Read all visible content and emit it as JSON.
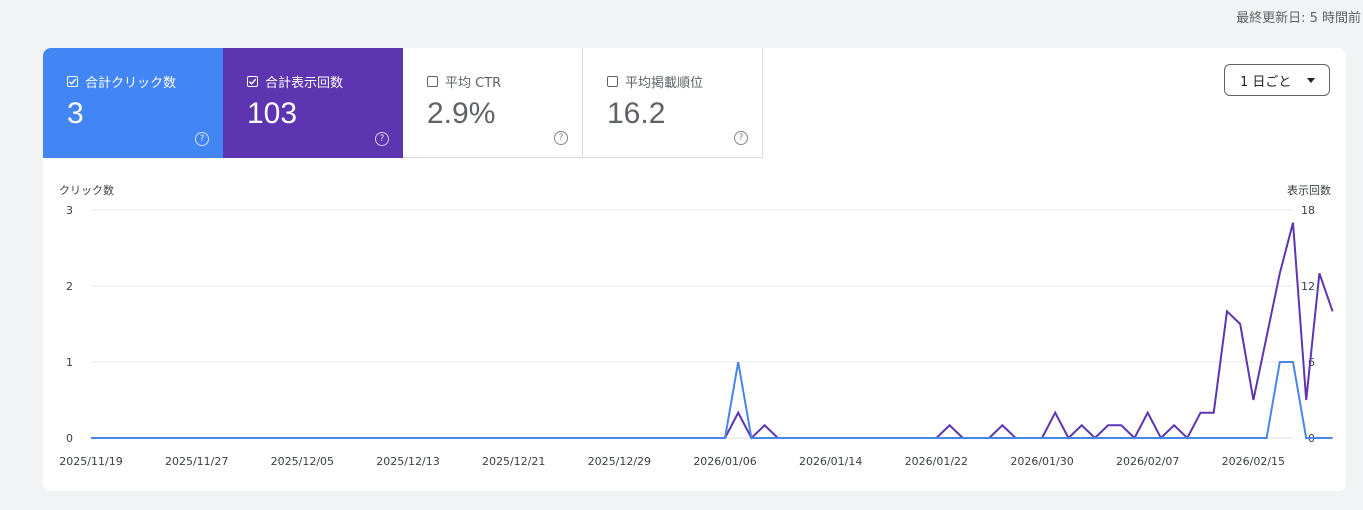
{
  "last_updated": "最終更新日: 5 時間前",
  "metrics": [
    {
      "label": "合計クリック数",
      "value": "3",
      "checked": true,
      "color": "#4285f4"
    },
    {
      "label": "合計表示回数",
      "value": "103",
      "checked": true,
      "color": "#5e35b1"
    },
    {
      "label": "平均 CTR",
      "value": "2.9%",
      "checked": false
    },
    {
      "label": "平均掲載順位",
      "value": "16.2",
      "checked": false
    }
  ],
  "help_glyph": "?",
  "granularity": {
    "selected": "1 日ごと",
    "icon": "caret-down-icon"
  },
  "chart_data": {
    "type": "line",
    "x_start": "2025/11/19",
    "x_end": "2026/02/18",
    "x_tick_labels": [
      "2025/11/19",
      "2025/11/27",
      "2025/12/05",
      "2025/12/13",
      "2025/12/21",
      "2025/12/29",
      "2026/01/06",
      "2026/01/14",
      "2026/01/22",
      "2026/01/30",
      "2026/02/07",
      "2026/02/15"
    ],
    "left_axis": {
      "label": "クリック数",
      "ticks": [
        "0",
        "1",
        "2",
        "3"
      ],
      "range": [
        0,
        3
      ]
    },
    "right_axis": {
      "label": "表示回数",
      "ticks": [
        "0",
        "6",
        "12",
        "18"
      ],
      "range": [
        0,
        18
      ]
    },
    "grid": true,
    "series": [
      {
        "name": "合計表示回数",
        "axis": "right",
        "color": "#5e35b1",
        "values": [
          0,
          0,
          0,
          0,
          0,
          0,
          0,
          0,
          0,
          0,
          0,
          0,
          0,
          0,
          0,
          0,
          0,
          0,
          0,
          0,
          0,
          0,
          0,
          0,
          0,
          0,
          0,
          0,
          0,
          0,
          0,
          0,
          0,
          0,
          0,
          0,
          0,
          0,
          0,
          0,
          0,
          0,
          0,
          0,
          0,
          0,
          0,
          0,
          0,
          2,
          0,
          1,
          0,
          0,
          0,
          0,
          0,
          0,
          0,
          0,
          0,
          0,
          0,
          0,
          0,
          1,
          0,
          0,
          0,
          1,
          0,
          0,
          0,
          2,
          0,
          1,
          0,
          1,
          1,
          0,
          2,
          0,
          1,
          0,
          2,
          2,
          10,
          9,
          3,
          8,
          13,
          17,
          3,
          13,
          10
        ]
      },
      {
        "name": "合計クリック数",
        "axis": "left",
        "color": "#4a86e8",
        "values": [
          0,
          0,
          0,
          0,
          0,
          0,
          0,
          0,
          0,
          0,
          0,
          0,
          0,
          0,
          0,
          0,
          0,
          0,
          0,
          0,
          0,
          0,
          0,
          0,
          0,
          0,
          0,
          0,
          0,
          0,
          0,
          0,
          0,
          0,
          0,
          0,
          0,
          0,
          0,
          0,
          0,
          0,
          0,
          0,
          0,
          0,
          0,
          0,
          0,
          1,
          0,
          0,
          0,
          0,
          0,
          0,
          0,
          0,
          0,
          0,
          0,
          0,
          0,
          0,
          0,
          0,
          0,
          0,
          0,
          0,
          0,
          0,
          0,
          0,
          0,
          0,
          0,
          0,
          0,
          0,
          0,
          0,
          0,
          0,
          0,
          0,
          0,
          0,
          0,
          0,
          1,
          1,
          0,
          0,
          0
        ]
      }
    ]
  }
}
